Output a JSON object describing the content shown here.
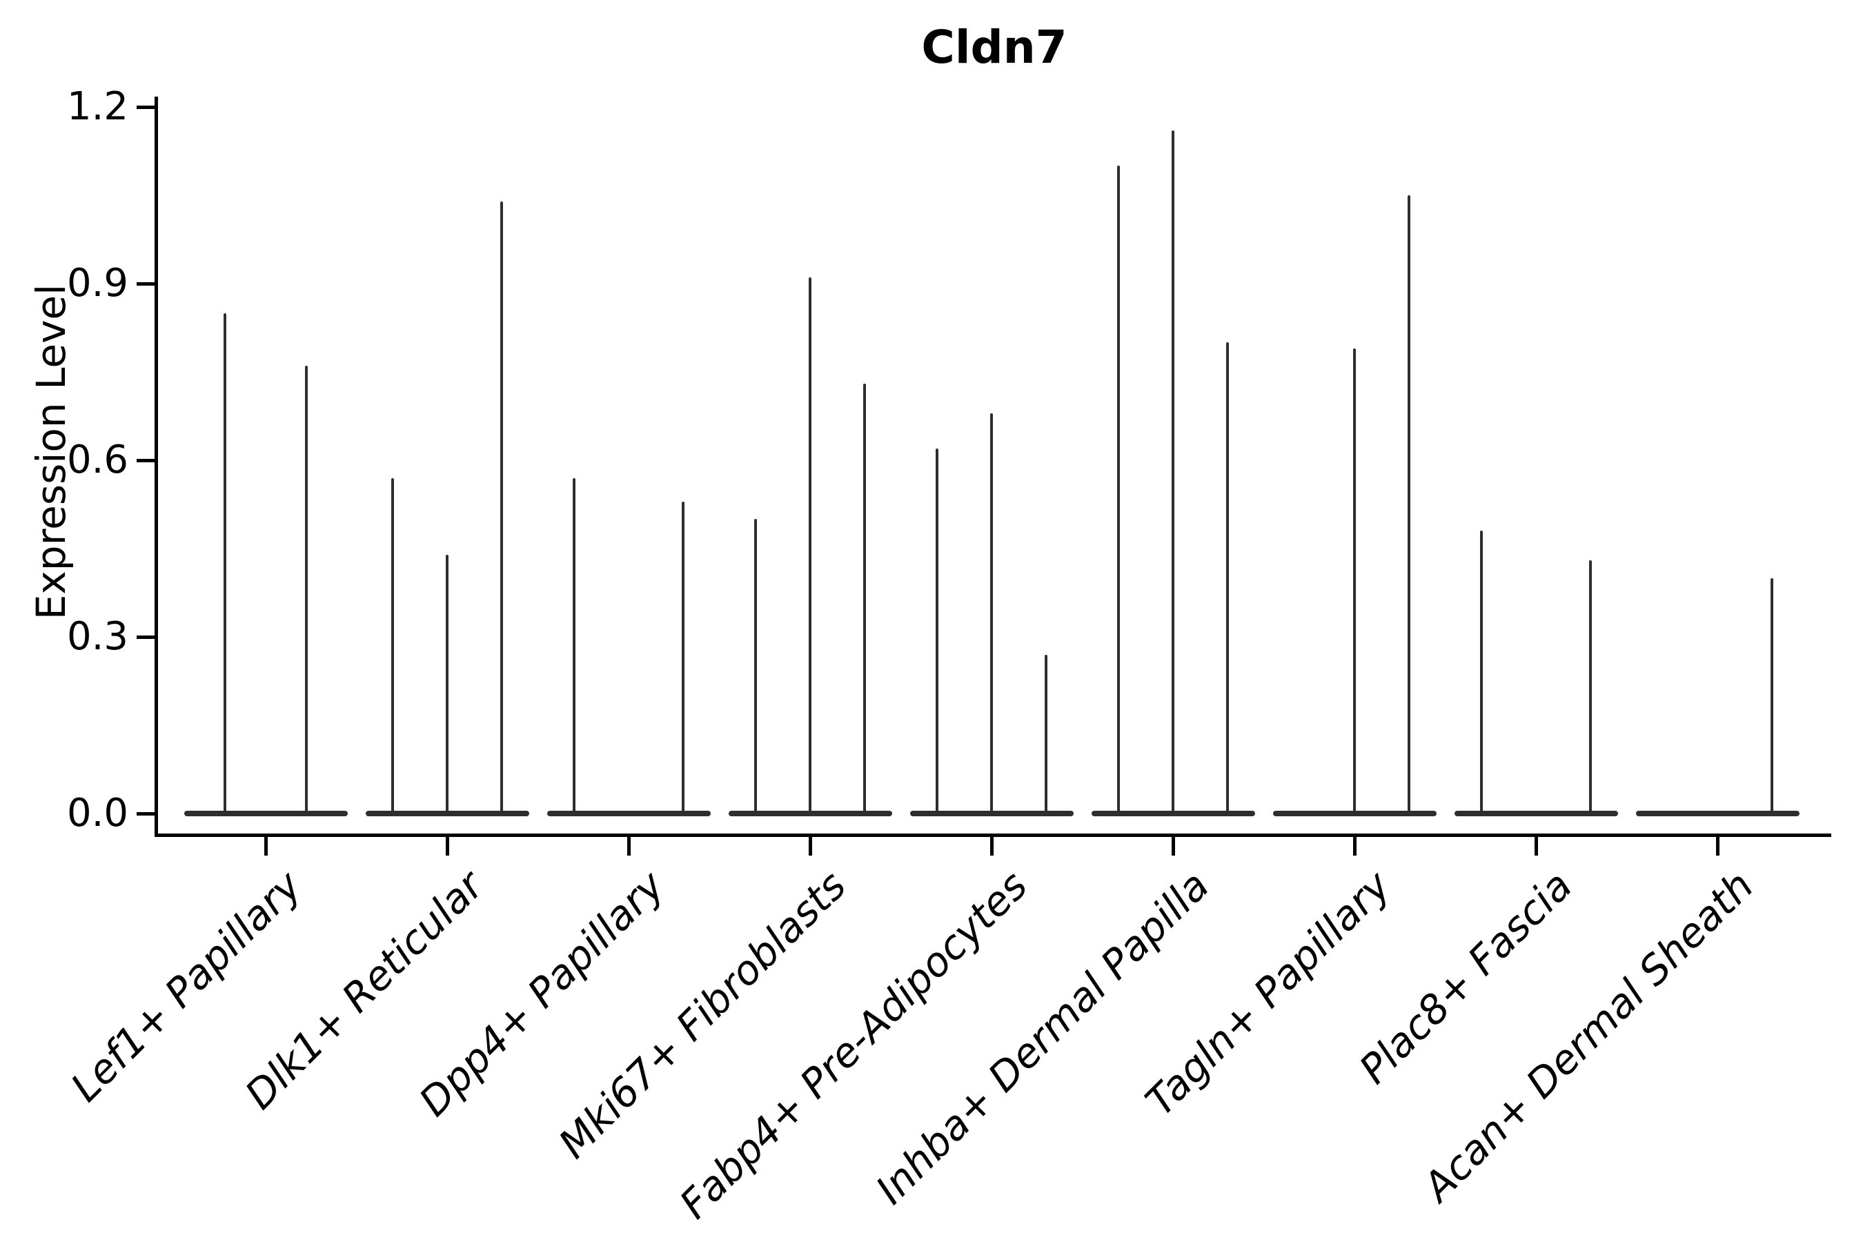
{
  "title": "Cldn7",
  "y_axis": {
    "label": "Expression Level"
  },
  "colors": {
    "violin": "#2e2e2e",
    "axis": "#000000",
    "text": "#000000",
    "background": "#ffffff"
  },
  "chart_data": {
    "type": "violin",
    "title": "Cldn7",
    "xlabel": "",
    "ylabel": "Expression Level",
    "ylim": [
      -0.04,
      1.22
    ],
    "yticks": [
      0.0,
      0.3,
      0.6,
      0.9,
      1.2
    ],
    "ytick_labels": [
      "0.0",
      "0.3",
      "0.6",
      "0.9",
      "1.2"
    ],
    "grid": false,
    "legend": "none",
    "x_tick_rotation_deg": 45,
    "categories": [
      "Lef1+ Papillary",
      "Dlk1+ Reticular",
      "Dpp4+ Papillary",
      "Mki67+ Fibroblasts",
      "Fabp4+ Pre-Adipocytes",
      "Inhba+ Dermal Papilla",
      "Tagln+ Papillary",
      "Plac8+ Fascia",
      "Acan+ Dermal Sheath"
    ],
    "groups": [
      {
        "category": "Lef1+ Papillary",
        "violin_max_expression": [
          0.85,
          0.76
        ]
      },
      {
        "category": "Dlk1+ Reticular",
        "violin_max_expression": [
          0.57,
          0.44,
          1.04
        ]
      },
      {
        "category": "Dpp4+ Papillary",
        "violin_max_expression": [
          0.57,
          0.0,
          0.53
        ]
      },
      {
        "category": "Mki67+ Fibroblasts",
        "violin_max_expression": [
          0.5,
          0.91,
          0.73
        ]
      },
      {
        "category": "Fabp4+ Pre-Adipocytes",
        "violin_max_expression": [
          0.62,
          0.68,
          0.27
        ]
      },
      {
        "category": "Inhba+ Dermal Papilla",
        "violin_max_expression": [
          1.1,
          1.16,
          0.8
        ]
      },
      {
        "category": "Tagln+ Papillary",
        "violin_max_expression": [
          0.0,
          0.79,
          1.05
        ]
      },
      {
        "category": "Plac8+ Fascia",
        "violin_max_expression": [
          0.48,
          0.0,
          0.43
        ]
      },
      {
        "category": "Acan+ Dermal Sheath",
        "violin_max_expression": [
          0.0,
          0.0,
          0.4
        ]
      }
    ],
    "shape_note": "each violin collapses to a flat base at 0 with a thin spike to its max expression"
  }
}
